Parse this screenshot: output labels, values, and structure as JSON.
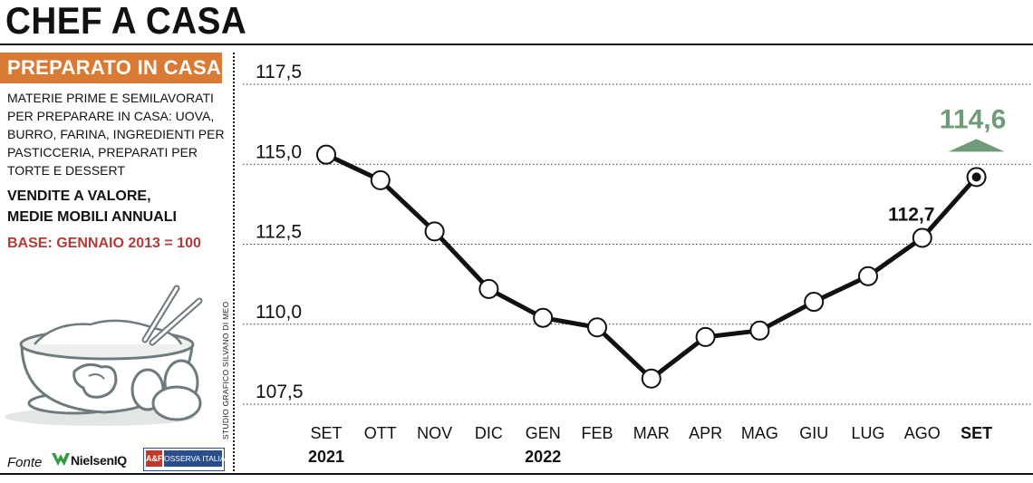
{
  "header": {
    "title": "CHEF A CASA"
  },
  "panel": {
    "box_title": "PREPARATO IN CASA",
    "description": "MATERIE PRIME E SEMILAVORATI PER PREPARARE IN CASA: UOVA, BURRO, FARINA, INGREDIENTI PER PASTICCERIA,  PREPARATI PER TORTE E DESSERT",
    "subtitle_line1": "VENDITE A VALORE,",
    "subtitle_line2": "MEDIE MOBILI ANNUALI",
    "base": "BASE: GENNAIO 2013 = 100"
  },
  "footer": {
    "fonte": "Fonte",
    "nielsen": "NielsenIQ",
    "osserva_logo": "A&F",
    "osserva": "OSSERVA ITALIA",
    "credit": "STUDIO GRAFICO SILVANO DI MEO"
  },
  "colors": {
    "accent": "#d97a35",
    "base_red": "#b53a37",
    "highlight_green": "#6f9c78",
    "line": "#111111"
  },
  "chart_data": {
    "type": "line",
    "categories": [
      "SET",
      "OTT",
      "NOV",
      "DIC",
      "GEN",
      "FEB",
      "MAR",
      "APR",
      "MAG",
      "GIU",
      "LUG",
      "AGO",
      "SET"
    ],
    "year_labels": [
      {
        "index": 0,
        "label": "2021"
      },
      {
        "index": 4,
        "label": "2022"
      }
    ],
    "values": [
      115.3,
      114.5,
      112.9,
      111.1,
      110.2,
      109.9,
      108.3,
      109.6,
      109.8,
      110.7,
      111.5,
      112.7,
      114.6
    ],
    "yticks": [
      "117,5",
      "115,0",
      "112,5",
      "110,0",
      "107,5"
    ],
    "ytick_values": [
      117.5,
      115.0,
      112.5,
      110.0,
      107.5
    ],
    "ylim": [
      107.5,
      117.5
    ],
    "annotations": [
      {
        "index": 11,
        "label": "112,7"
      },
      {
        "index": 12,
        "label": "114,6"
      }
    ],
    "grid": true
  }
}
